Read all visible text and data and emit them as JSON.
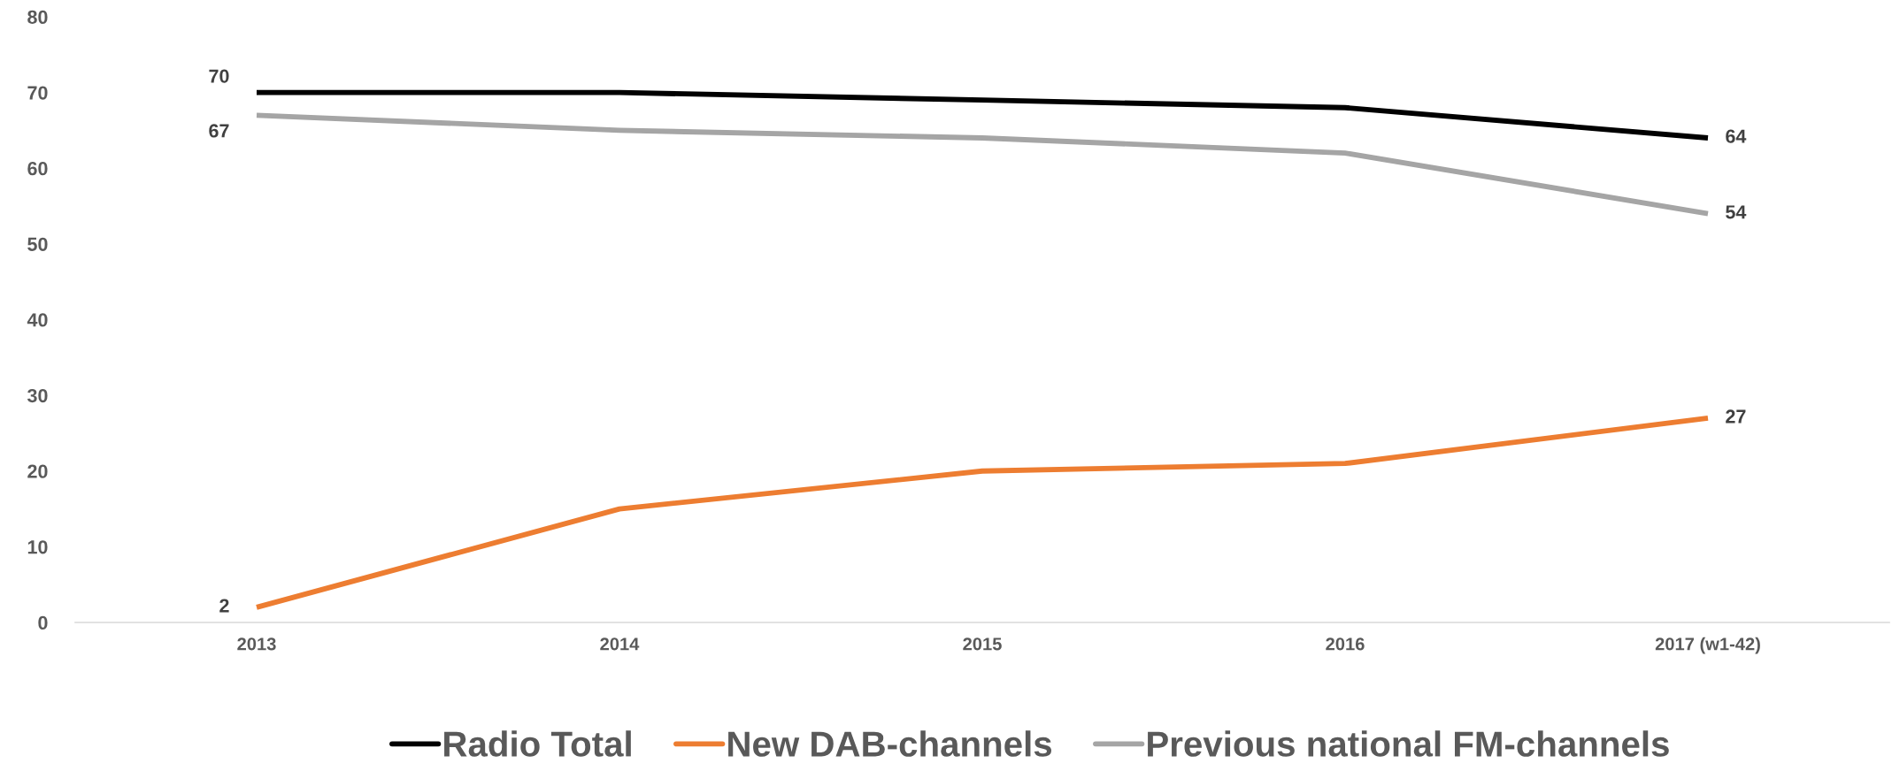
{
  "chart_data": {
    "type": "line",
    "categories": [
      "2013",
      "2014",
      "2015",
      "2016",
      "2017 (w1-42)"
    ],
    "series": [
      {
        "name": "Radio Total",
        "color": "#000000",
        "values": [
          70,
          70,
          69,
          68,
          64
        ],
        "value_labels": [
          "70",
          null,
          null,
          null,
          "64"
        ]
      },
      {
        "name": "New DAB-channels",
        "color": "#ed7d31",
        "values": [
          2,
          15,
          20,
          21,
          27
        ],
        "value_labels": [
          "2",
          null,
          null,
          null,
          "27"
        ]
      },
      {
        "name": "Previous national FM-channels",
        "color": "#a5a5a5",
        "values": [
          67,
          65,
          64,
          62,
          54
        ],
        "value_labels": [
          "67",
          null,
          null,
          null,
          "54"
        ]
      }
    ],
    "ylim": [
      0,
      80
    ],
    "yticks": [
      0,
      10,
      20,
      30,
      40,
      50,
      60,
      70,
      80
    ],
    "grid": false,
    "legend": "bottom",
    "marker": "none",
    "line_style": "solid"
  }
}
